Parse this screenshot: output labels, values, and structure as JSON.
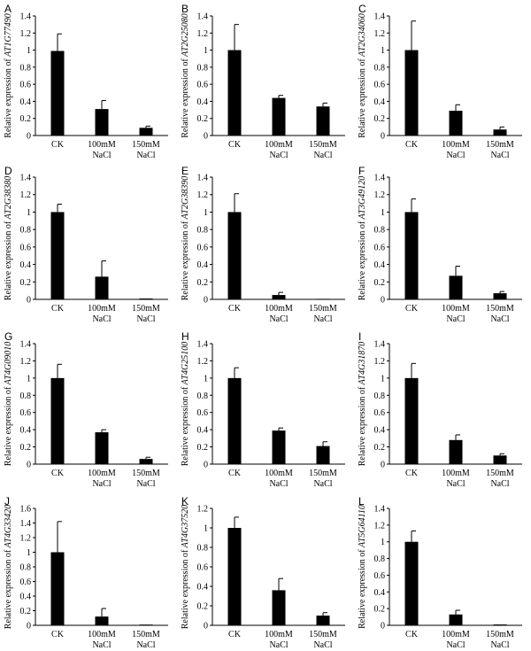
{
  "chart_data": [
    {
      "panel": "A",
      "type": "bar",
      "ylabel_prefix": "Relative expression of ",
      "gene": "AT1G77490",
      "categories": [
        [
          "CK"
        ],
        [
          "100mM",
          "NaCl"
        ],
        [
          "150mM",
          "NaCl"
        ]
      ],
      "values": [
        0.99,
        0.31,
        0.09
      ],
      "errors": [
        0.2,
        0.1,
        0.02
      ],
      "ylim": [
        0,
        1.4
      ],
      "yticks": [
        "0",
        "0.2",
        "0.4",
        "0.6",
        "0.8",
        "1",
        "1.2",
        "1.4"
      ]
    },
    {
      "panel": "B",
      "type": "bar",
      "ylabel_prefix": "Relative expression of ",
      "gene": "AT2G25080",
      "categories": [
        [
          "CK"
        ],
        [
          "100mM",
          "NaCl"
        ],
        [
          "150mM",
          "NaCl"
        ]
      ],
      "values": [
        1.0,
        0.44,
        0.34
      ],
      "errors": [
        0.3,
        0.03,
        0.04
      ],
      "ylim": [
        0,
        1.4
      ],
      "yticks": [
        "0",
        "0.2",
        "0.4",
        "0.6",
        "0.8",
        "1",
        "1.2",
        "1.4"
      ]
    },
    {
      "panel": "C",
      "type": "bar",
      "ylabel_prefix": "Relative expression of ",
      "gene": "AT2G34060",
      "categories": [
        [
          "CK"
        ],
        [
          "100mM",
          "NaCl"
        ],
        [
          "150mM",
          "NaCl"
        ]
      ],
      "values": [
        1.0,
        0.29,
        0.07
      ],
      "errors": [
        0.34,
        0.07,
        0.03
      ],
      "ylim": [
        0,
        1.4
      ],
      "yticks": [
        "0",
        "0.2",
        "0.4",
        "0.6",
        "0.8",
        "1",
        "1.2",
        "1.4"
      ]
    },
    {
      "panel": "D",
      "type": "bar",
      "ylabel_prefix": "Relative expression of ",
      "gene": "AT2G38380",
      "categories": [
        [
          "CK"
        ],
        [
          "100mM",
          "NaCl"
        ],
        [
          "150mM",
          "NaCl"
        ]
      ],
      "values": [
        1.0,
        0.26,
        0.01
      ],
      "errors": [
        0.09,
        0.18,
        0.0
      ],
      "ylim": [
        0,
        1.4
      ],
      "yticks": [
        "0",
        "0.2",
        "0.4",
        "0.6",
        "0.8",
        "1",
        "1.2",
        "1.4"
      ]
    },
    {
      "panel": "E",
      "type": "bar",
      "ylabel_prefix": "Relative expression of ",
      "gene": "AT2G38390",
      "categories": [
        [
          "CK"
        ],
        [
          "100mM",
          "NaCl"
        ],
        [
          "150mM",
          "NaCl"
        ]
      ],
      "values": [
        1.0,
        0.05,
        0.0
      ],
      "errors": [
        0.21,
        0.03,
        0.0
      ],
      "ylim": [
        0,
        1.4
      ],
      "yticks": [
        "0",
        "0.2",
        "0.4",
        "0.6",
        "0.8",
        "1",
        "1.2",
        "1.4"
      ]
    },
    {
      "panel": "F",
      "type": "bar",
      "ylabel_prefix": "Relative expression of ",
      "gene": "AT3G49120",
      "categories": [
        [
          "CK"
        ],
        [
          "100mM",
          "NaCl"
        ],
        [
          "150mM",
          "NaCl"
        ]
      ],
      "values": [
        1.0,
        0.27,
        0.07
      ],
      "errors": [
        0.15,
        0.11,
        0.02
      ],
      "ylim": [
        0,
        1.4
      ],
      "yticks": [
        "0",
        "0.2",
        "0.4",
        "0.6",
        "0.8",
        "1",
        "1.2",
        "1.4"
      ]
    },
    {
      "panel": "G",
      "type": "bar",
      "ylabel_prefix": "Relative expression of ",
      "gene": "AT4G09010",
      "categories": [
        [
          "CK"
        ],
        [
          "100mM",
          "NaCl"
        ],
        [
          "150mM",
          "NaCl"
        ]
      ],
      "values": [
        1.0,
        0.37,
        0.06
      ],
      "errors": [
        0.16,
        0.03,
        0.02
      ],
      "ylim": [
        0,
        1.4
      ],
      "yticks": [
        "0",
        "0.2",
        "0.4",
        "0.6",
        "0.8",
        "1",
        "1.2",
        "1.4"
      ]
    },
    {
      "panel": "H",
      "type": "bar",
      "ylabel_prefix": "Relative expression of ",
      "gene": "AT4G25100",
      "categories": [
        [
          "CK"
        ],
        [
          "100mM",
          "NaCl"
        ],
        [
          "150mM",
          "NaCl"
        ]
      ],
      "values": [
        1.0,
        0.39,
        0.21
      ],
      "errors": [
        0.12,
        0.03,
        0.05
      ],
      "ylim": [
        0,
        1.4
      ],
      "yticks": [
        "0",
        "0.2",
        "0.4",
        "0.6",
        "0.8",
        "1",
        "1.2",
        "1.4"
      ]
    },
    {
      "panel": "I",
      "type": "bar",
      "ylabel_prefix": "Relative expression of ",
      "gene": "AT4G31870",
      "categories": [
        [
          "CK"
        ],
        [
          "100mM",
          "NaCl"
        ],
        [
          "150mM",
          "NaCl"
        ]
      ],
      "values": [
        1.0,
        0.28,
        0.1
      ],
      "errors": [
        0.17,
        0.06,
        0.02
      ],
      "ylim": [
        0,
        1.4
      ],
      "yticks": [
        "0",
        "0.2",
        "0.4",
        "0.6",
        "0.8",
        "1",
        "1.2",
        "1.4"
      ]
    },
    {
      "panel": "J",
      "type": "bar",
      "ylabel_prefix": "Relative expression of ",
      "gene": "AT4G33420",
      "categories": [
        [
          "CK"
        ],
        [
          "100mM",
          "NaCl"
        ],
        [
          "150mM",
          "NaCl"
        ]
      ],
      "values": [
        1.0,
        0.12,
        0.01
      ],
      "errors": [
        0.42,
        0.11,
        0.0
      ],
      "ylim": [
        0,
        1.6
      ],
      "yticks": [
        "0",
        "0.2",
        "0.4",
        "0.6",
        "0.8",
        "1",
        "1.2",
        "1.4",
        "1.6"
      ]
    },
    {
      "panel": "K",
      "type": "bar",
      "ylabel_prefix": "Relative expression of ",
      "gene": "AT4G37520",
      "categories": [
        [
          "CK"
        ],
        [
          "100mM",
          "NaCl"
        ],
        [
          "150mM",
          "NaCl"
        ]
      ],
      "values": [
        1.0,
        0.36,
        0.1
      ],
      "errors": [
        0.11,
        0.12,
        0.03
      ],
      "ylim": [
        0,
        1.2
      ],
      "yticks": [
        "0",
        "0.2",
        "0.4",
        "0.6",
        "0.8",
        "1",
        "1.2"
      ]
    },
    {
      "panel": "L",
      "type": "bar",
      "ylabel_prefix": "Relative expression of ",
      "gene": "AT5G64110",
      "categories": [
        [
          "CK"
        ],
        [
          "100mM",
          "NaCl"
        ],
        [
          "150mM",
          "NaCl"
        ]
      ],
      "values": [
        1.0,
        0.13,
        0.01
      ],
      "errors": [
        0.13,
        0.05,
        0.0
      ],
      "ylim": [
        0,
        1.4
      ],
      "yticks": [
        "0",
        "0.2",
        "0.4",
        "0.6",
        "0.8",
        "1",
        "1.2",
        "1.4"
      ]
    }
  ]
}
